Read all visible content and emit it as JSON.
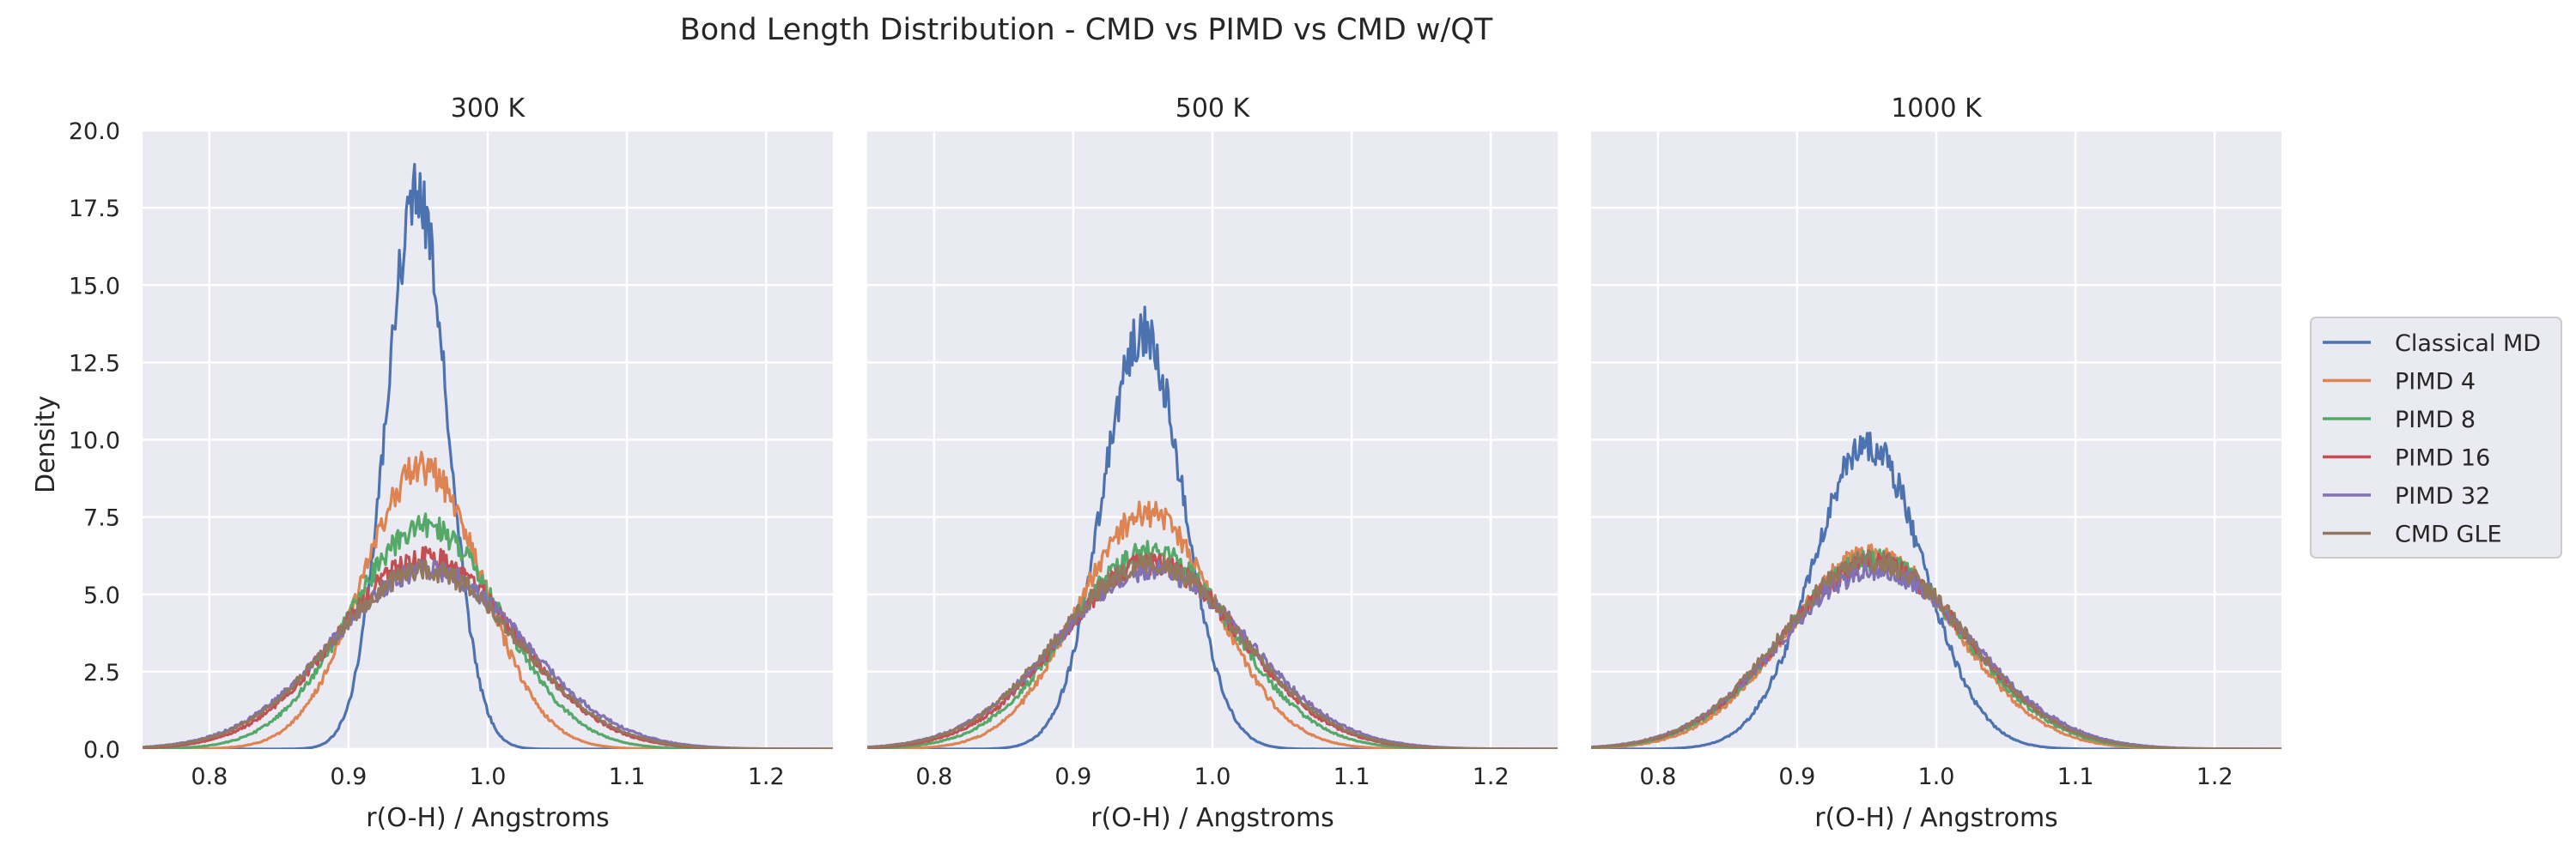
{
  "figure": {
    "title": "Bond Length Distribution - CMD vs PIMD vs CMD w/QT"
  },
  "chart_data": {
    "type": "line",
    "shared_y": true,
    "ylabel": "Density",
    "ylim": [
      0,
      20
    ],
    "yticks": [
      0.0,
      2.5,
      5.0,
      7.5,
      10.0,
      12.5,
      15.0,
      17.5,
      20.0
    ],
    "ytick_labels": [
      "0.0",
      "2.5",
      "5.0",
      "7.5",
      "10.0",
      "12.5",
      "15.0",
      "17.5",
      "20.0"
    ],
    "xlabel": "r(O-H) / Angstroms",
    "xlim": [
      0.752,
      1.248
    ],
    "xticks": [
      0.8,
      0.9,
      1.0,
      1.1,
      1.2
    ],
    "xtick_labels": [
      "0.8",
      "0.9",
      "1.0",
      "1.1",
      "1.2"
    ],
    "grid": true,
    "legend_placement": "right-center",
    "colors": {
      "Classical MD": "#4c72b0",
      "PIMD 4": "#dd8452",
      "PIMD 8": "#55a868",
      "PIMD 16": "#c44e52",
      "PIMD 32": "#8172b3",
      "CMD GLE": "#937860"
    },
    "legend": [
      "Classical MD",
      "PIMD 4",
      "PIMD 8",
      "PIMD 16",
      "PIMD 32",
      "CMD GLE"
    ],
    "panels": [
      {
        "title": "300 K",
        "series": [
          {
            "name": "Classical MD",
            "mean": 0.949,
            "sigma": 0.022,
            "peak": 17.9
          },
          {
            "name": "PIMD 4",
            "mean": 0.953,
            "sigma": 0.043,
            "peak": 9.1
          },
          {
            "name": "PIMD 8",
            "mean": 0.955,
            "sigma": 0.054,
            "peak": 7.2
          },
          {
            "name": "PIMD 16",
            "mean": 0.956,
            "sigma": 0.063,
            "peak": 6.2
          },
          {
            "name": "PIMD 32",
            "mean": 0.957,
            "sigma": 0.068,
            "peak": 5.8
          },
          {
            "name": "CMD GLE",
            "mean": 0.955,
            "sigma": 0.066,
            "peak": 5.8
          }
        ]
      },
      {
        "title": "500 K",
        "series": [
          {
            "name": "Classical MD",
            "mean": 0.95,
            "sigma": 0.029,
            "peak": 13.5
          },
          {
            "name": "PIMD 4",
            "mean": 0.953,
            "sigma": 0.05,
            "peak": 7.6
          },
          {
            "name": "PIMD 8",
            "mean": 0.955,
            "sigma": 0.059,
            "peak": 6.4
          },
          {
            "name": "PIMD 16",
            "mean": 0.956,
            "sigma": 0.064,
            "peak": 6.0
          },
          {
            "name": "PIMD 32",
            "mean": 0.957,
            "sigma": 0.068,
            "peak": 5.8
          },
          {
            "name": "CMD GLE",
            "mean": 0.955,
            "sigma": 0.066,
            "peak": 6.0
          }
        ]
      },
      {
        "title": "1000 K",
        "series": [
          {
            "name": "Classical MD",
            "mean": 0.951,
            "sigma": 0.04,
            "peak": 9.8
          },
          {
            "name": "PIMD 4",
            "mean": 0.954,
            "sigma": 0.061,
            "peak": 6.3
          },
          {
            "name": "PIMD 8",
            "mean": 0.955,
            "sigma": 0.064,
            "peak": 6.1
          },
          {
            "name": "PIMD 16",
            "mean": 0.956,
            "sigma": 0.066,
            "peak": 6.0
          },
          {
            "name": "PIMD 32",
            "mean": 0.957,
            "sigma": 0.068,
            "peak": 5.8
          },
          {
            "name": "CMD GLE",
            "mean": 0.955,
            "sigma": 0.066,
            "peak": 6.1
          }
        ]
      }
    ]
  }
}
